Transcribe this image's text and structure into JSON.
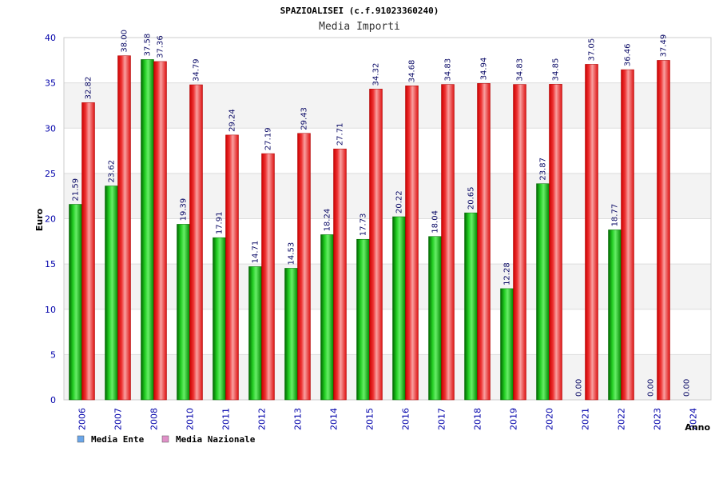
{
  "chart_data": {
    "type": "bar",
    "title": "SPAZIOALISEI (c.f.91023360240)",
    "subtitle": "Media Importi",
    "ylabel": "Euro",
    "xlabel": "Anno",
    "ylim": [
      0,
      40
    ],
    "yticks": [
      0,
      5,
      10,
      15,
      20,
      25,
      30,
      35,
      40
    ],
    "grid": true,
    "legend_position": "bottom-left",
    "categories": [
      "2006",
      "2007",
      "2008",
      "2010",
      "2011",
      "2012",
      "2013",
      "2014",
      "2015",
      "2016",
      "2017",
      "2018",
      "2019",
      "2020",
      "2021",
      "2022",
      "2023",
      "2024"
    ],
    "series": [
      {
        "name": "Media Ente",
        "color": "#00aa00",
        "legend_color": "#6aa6ea",
        "values": [
          21.59,
          23.62,
          37.58,
          19.39,
          17.91,
          14.71,
          14.53,
          18.24,
          17.73,
          20.22,
          18.04,
          20.65,
          12.28,
          23.87,
          0.0,
          18.77,
          0.0,
          0.0
        ],
        "labels": [
          "21.59",
          "23.62",
          "37.58",
          "19.39",
          "17.91",
          "14.71",
          "14.53",
          "18.24",
          "17.73",
          "20.22",
          "18.04",
          "20.65",
          "12.28",
          "23.87",
          "0.00",
          "18.77",
          "0.00",
          "0.00"
        ]
      },
      {
        "name": "Media Nazionale",
        "color": "#ee2222",
        "legend_color": "#e090c8",
        "values": [
          32.82,
          38.0,
          37.36,
          34.79,
          29.24,
          27.19,
          29.43,
          27.71,
          34.32,
          34.68,
          34.83,
          34.94,
          34.83,
          34.85,
          37.05,
          36.46,
          37.49,
          null
        ],
        "labels": [
          "32.82",
          "38.00",
          "37.36",
          "34.79",
          "29.24",
          "27.19",
          "29.43",
          "27.71",
          "34.32",
          "34.68",
          "34.83",
          "34.94",
          "34.83",
          "34.85",
          "37.05",
          "36.46",
          "37.49",
          ""
        ]
      }
    ]
  }
}
